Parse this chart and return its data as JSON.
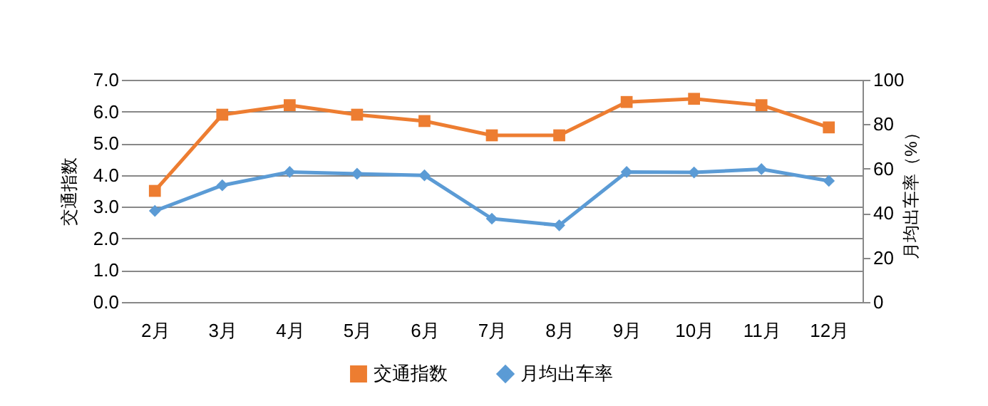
{
  "chart_data": {
    "type": "line",
    "categories": [
      "2月",
      "3月",
      "4月",
      "5月",
      "6月",
      "7月",
      "8月",
      "9月",
      "10月",
      "11月",
      "12月"
    ],
    "ylabel": "交通指数",
    "y2label": "月均出车率（%）",
    "ylim": [
      0,
      7
    ],
    "yticks": [
      {
        "value": 0,
        "label": "0.0"
      },
      {
        "value": 1,
        "label": "1.0"
      },
      {
        "value": 2,
        "label": "2.0"
      },
      {
        "value": 3,
        "label": "3.0"
      },
      {
        "value": 4,
        "label": "4.0"
      },
      {
        "value": 5,
        "label": "5.0"
      },
      {
        "value": 6,
        "label": "6.0"
      },
      {
        "value": 7,
        "label": "7.0"
      }
    ],
    "y2lim": [
      0,
      100
    ],
    "y2ticks": [
      0,
      20,
      40,
      60,
      80,
      100
    ],
    "grid": "y",
    "legend": "bottom",
    "line_style": "solid",
    "series": [
      {
        "name": "交通指数",
        "color": "#ed7d31",
        "marker": "square",
        "values": [
          3.5,
          5.9,
          6.2,
          5.9,
          5.7,
          5.25,
          5.25,
          6.3,
          6.4,
          6.2,
          5.5
        ]
      },
      {
        "name": "月均出车率",
        "color": "#5b9bd5",
        "marker": "diamond",
        "axis": "y2",
        "values": [
          41,
          52.5,
          58.5,
          57.7,
          57,
          37.5,
          34.5,
          58.5,
          58.3,
          59.8,
          54.5
        ]
      }
    ]
  }
}
